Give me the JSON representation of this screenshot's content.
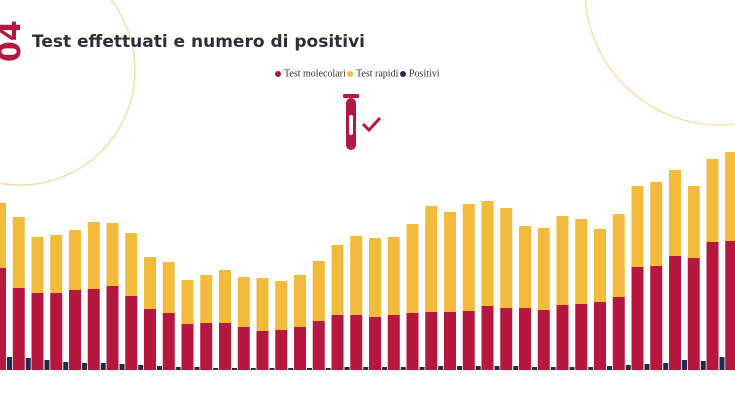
{
  "chart_data": {
    "type": "stacked_bar",
    "number": "04",
    "title": "Test effettuati e numero di positivi",
    "categories": [
      null,
      null,
      null,
      null,
      null,
      null,
      null,
      null,
      null,
      null,
      null,
      null,
      null,
      null,
      null,
      null,
      null,
      null,
      null,
      null,
      null,
      null,
      null,
      null,
      null,
      null,
      null,
      null,
      null,
      null,
      null,
      null,
      null,
      null,
      null,
      null,
      null,
      null,
      null,
      null
    ],
    "series": [
      {
        "name": "Test molecolari",
        "color": "#b5173f",
        "values": [
          102,
          82,
          77,
          77,
          80,
          81,
          84,
          74,
          61,
          57,
          46,
          47,
          47,
          43,
          39,
          40,
          43,
          49,
          55,
          55,
          53,
          55,
          57,
          58,
          58,
          59,
          64,
          62,
          62,
          60,
          65,
          66,
          68,
          73,
          103,
          104,
          114,
          112,
          128,
          129
        ]
      },
      {
        "name": "Test rapidi",
        "color": "#f2bb3c",
        "values": [
          65,
          71,
          56,
          58,
          60,
          67,
          63,
          63,
          52,
          51,
          44,
          48,
          53,
          50,
          53,
          49,
          52,
          60,
          70,
          79,
          79,
          78,
          89,
          106,
          100,
          107,
          105,
          100,
          82,
          82,
          89,
          85,
          73,
          83,
          81,
          84,
          86,
          72,
          83,
          89
        ]
      },
      {
        "name": "Positivi",
        "color": "#1f2d4f",
        "values": [
          13,
          12,
          10,
          8,
          7,
          7,
          6,
          5,
          4,
          3,
          3,
          2,
          2,
          2,
          2,
          2,
          2,
          2,
          3,
          3,
          3,
          3,
          3,
          4,
          4,
          4,
          4,
          4,
          3,
          3,
          3,
          3,
          4,
          5,
          6,
          7,
          10,
          9,
          13,
          9
        ]
      }
    ]
  }
}
